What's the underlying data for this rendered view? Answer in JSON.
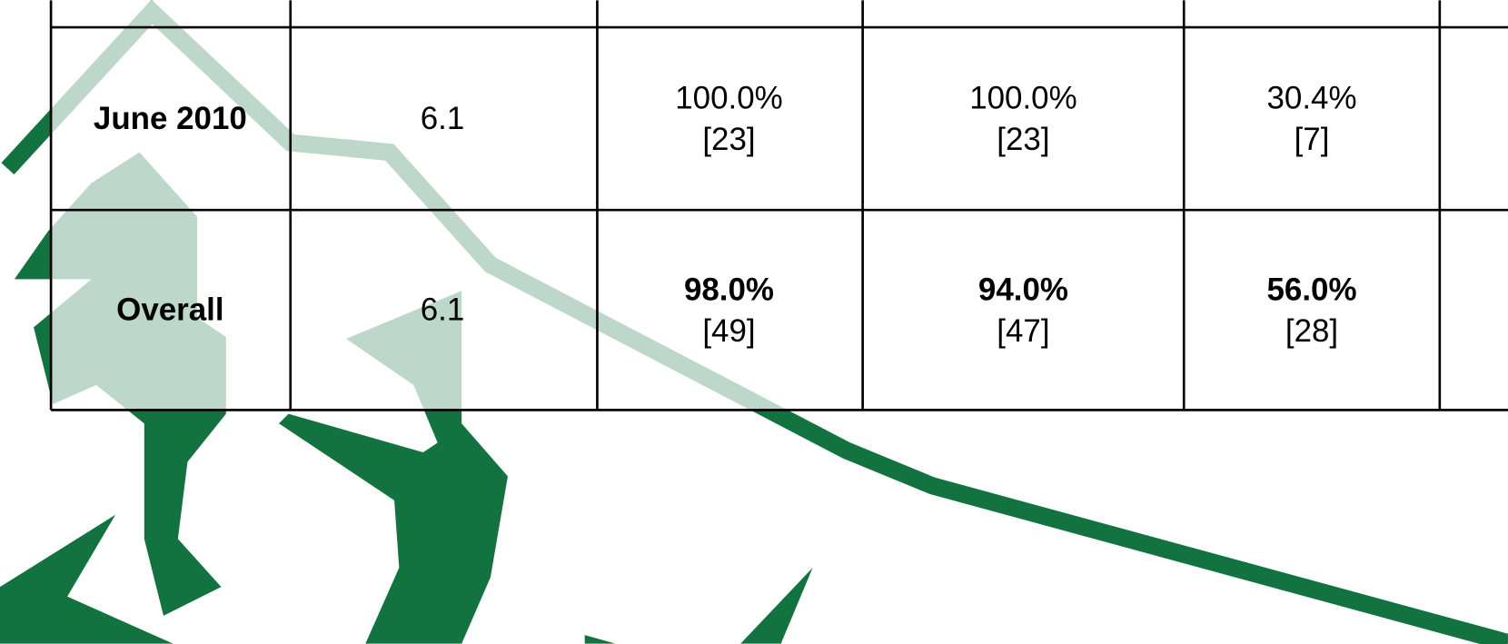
{
  "table": {
    "rows": [
      {
        "label": "June 2010",
        "score": "6.1",
        "cells": [
          {
            "percent": "100.0%",
            "count": "[23]"
          },
          {
            "percent": "100.0%",
            "count": "[23]"
          },
          {
            "percent": "30.4%",
            "count": "[7]"
          }
        ]
      },
      {
        "label": "Overall",
        "score": "6.1",
        "cells": [
          {
            "percent": "98.0%",
            "count": "[49]"
          },
          {
            "percent": "94.0%",
            "count": "[47]"
          },
          {
            "percent": "56.0%",
            "count": "[28]"
          }
        ]
      }
    ]
  }
}
